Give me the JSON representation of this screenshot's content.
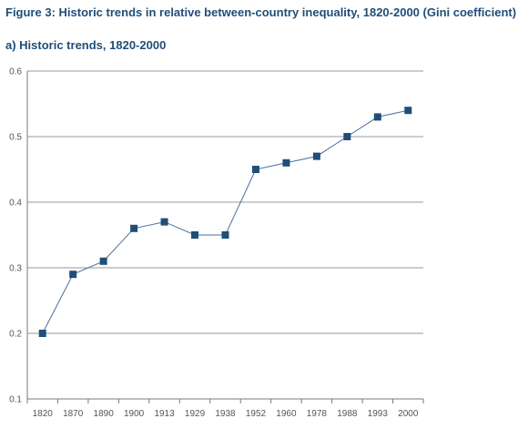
{
  "colors": {
    "title": "#1f4e79",
    "series": "#1f4e79",
    "line": "#4a6f9a",
    "grid": "#9a9a9a",
    "axis": "#7a7a7a",
    "tick_text": "#555555"
  },
  "chart_data": {
    "type": "line",
    "title": "Figure 3: Historic trends in relative between-country inequality, 1820-2000 (Gini coefficient)",
    "subtitle": "a) Historic trends, 1820-2000",
    "xlabel": "",
    "ylabel": "",
    "categories": [
      "1820",
      "1870",
      "1890",
      "1900",
      "1913",
      "1929",
      "1938",
      "1952",
      "1960",
      "1978",
      "1988",
      "1993",
      "2000"
    ],
    "series": [
      {
        "values": [
          0.2,
          0.29,
          0.31,
          0.36,
          0.37,
          0.35,
          0.35,
          0.45,
          0.46,
          0.47,
          0.5,
          0.53,
          0.54
        ]
      }
    ],
    "ylim": [
      0.1,
      0.6
    ],
    "yticks": [
      0.1,
      0.2,
      0.3,
      0.4,
      0.5,
      0.6
    ],
    "ytick_labels": [
      "0.1",
      "0.2",
      "0.3",
      "0.4",
      "0.5",
      "0.6"
    ],
    "grid": "horizontal",
    "marker": "square"
  }
}
